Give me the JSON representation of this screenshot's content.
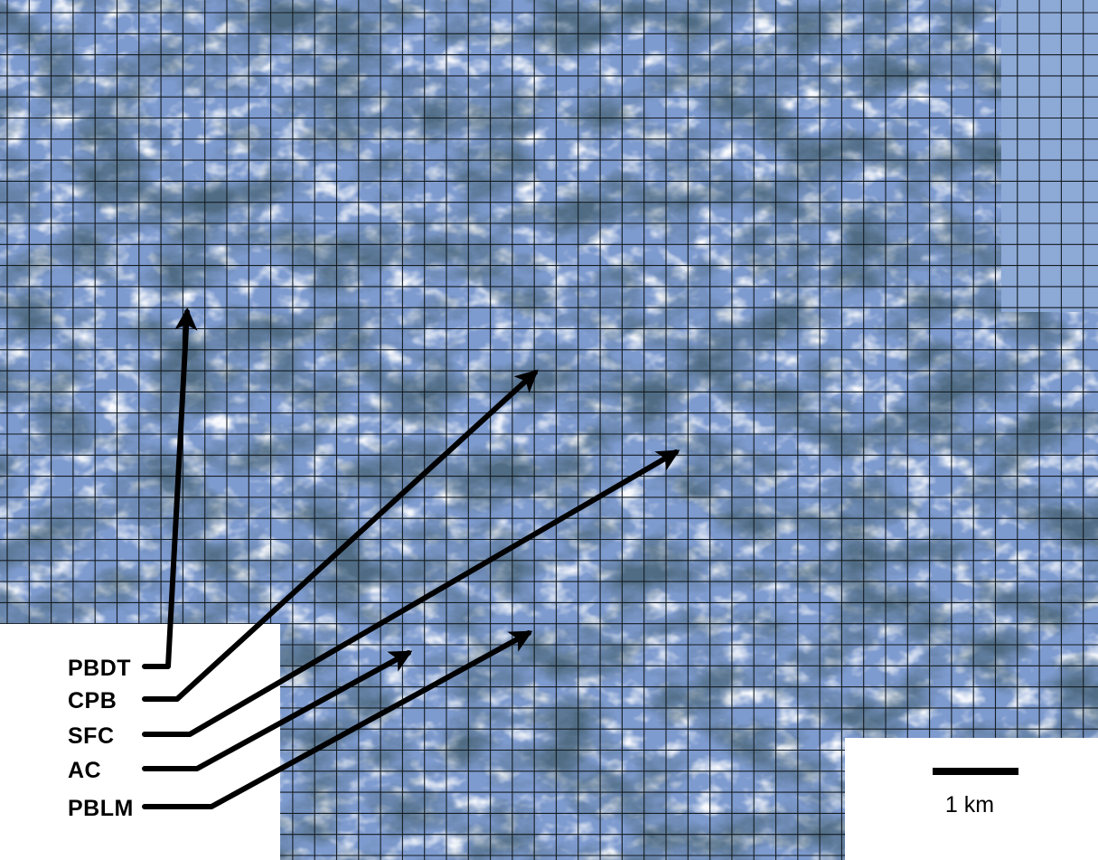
{
  "map": {
    "labels": [
      "PBDT",
      "CPB",
      "SFC",
      "AC",
      "PBLM"
    ],
    "scale": {
      "text": "1 km"
    },
    "colors": {
      "base": "#7e9bcf",
      "light": "#dbe5f2",
      "dark": "#14263a",
      "grid": "#141c22",
      "arrow": "#000000",
      "panel": "#ffffff",
      "no_data_fill": "#8da9d6"
    }
  }
}
